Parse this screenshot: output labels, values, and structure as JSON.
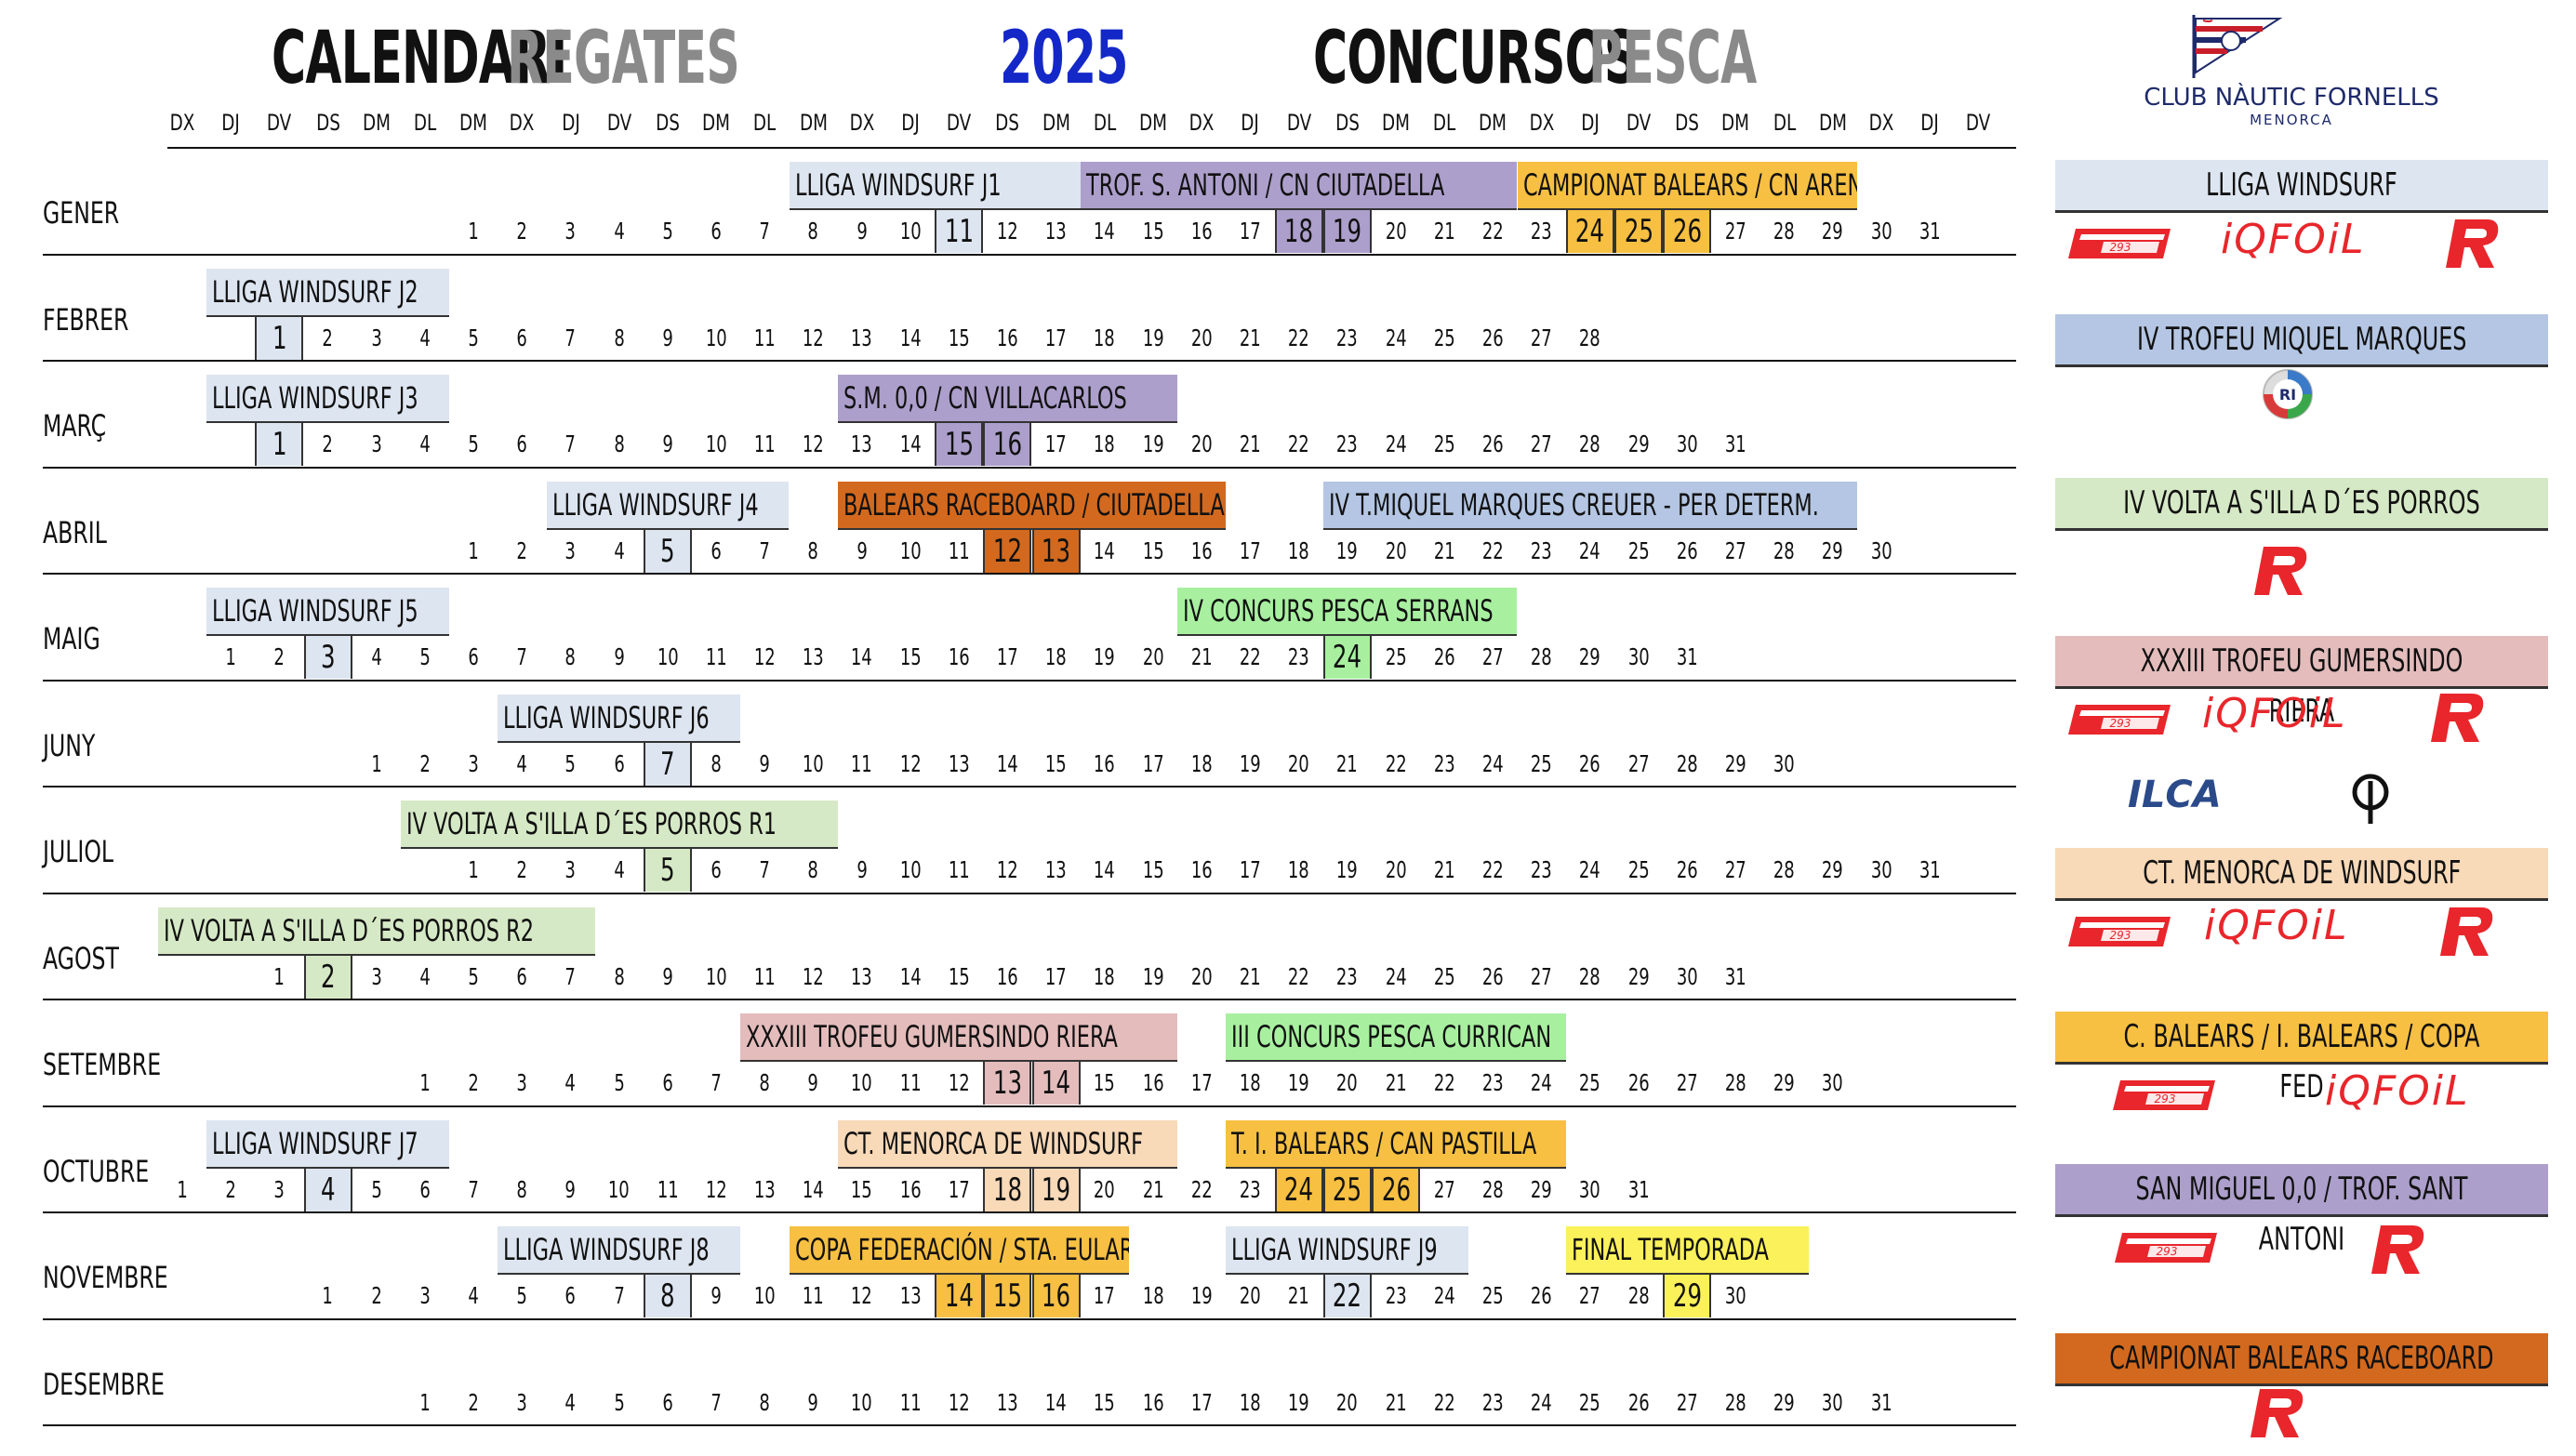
{
  "title": {
    "calendari": "CALENDARI",
    "regates": "REGATES",
    "year": "2025",
    "concursos": "CONCURSOS",
    "pesca": "PESCA"
  },
  "club": {
    "name": "CLUB NÀUTIC FORNELLS",
    "sub": "MENORCA"
  },
  "colors": {
    "windsurf": "#dde5f0",
    "blue_legend": "#b4c6e3",
    "purple": "#ac9fcb",
    "orange_dark": "#d2691e",
    "green_pale": "#d6e9c6",
    "pink": "#e4bcbc",
    "peach": "#f8d9b8",
    "gold": "#f7c042",
    "yellow": "#fbf15a",
    "green_bright": "#a8f0a0",
    "red_logo": "#e8262b"
  },
  "day_headers": [
    "DX",
    "DJ",
    "DV",
    "DS",
    "DM",
    "DL",
    "DM",
    "DX",
    "DJ",
    "DV",
    "DS",
    "DM",
    "DL",
    "DM",
    "DX",
    "DJ",
    "DV",
    "DS",
    "DM",
    "DL",
    "DM",
    "DX",
    "DJ",
    "DV",
    "DS",
    "DM",
    "DL",
    "DM",
    "DX",
    "DJ",
    "DV",
    "DS",
    "DM",
    "DL",
    "DM",
    "DX",
    "DJ",
    "DV"
  ],
  "months": [
    {
      "name": "GENER",
      "start": 7,
      "days": 31,
      "hl": [
        [
          11,
          "#dde5f0"
        ],
        [
          18,
          "#ac9fcb"
        ],
        [
          19,
          "#ac9fcb"
        ],
        [
          24,
          "#f7c042"
        ],
        [
          25,
          "#f7c042"
        ],
        [
          26,
          "#f7c042"
        ]
      ],
      "bars": [
        {
          "label": "LLIGA WINDSURF J1",
          "c0": 14,
          "c1": 19,
          "color": "#dde5f0"
        },
        {
          "label": "TROF. S. ANTONI / CN CIUTADELLA",
          "c0": 20,
          "c1": 28,
          "color": "#ac9fcb"
        },
        {
          "label": "CAMPIONAT BALEARS / CN ARENAL",
          "c0": 29,
          "c1": 35,
          "color": "#f7c042"
        }
      ]
    },
    {
      "name": "FEBRER",
      "start": 3,
      "days": 28,
      "hl": [
        [
          1,
          "#dde5f0"
        ]
      ],
      "bars": [
        {
          "label": "LLIGA WINDSURF  J2",
          "c0": 2,
          "c1": 6,
          "color": "#dde5f0"
        }
      ]
    },
    {
      "name": "MARÇ",
      "start": 3,
      "days": 31,
      "hl": [
        [
          1,
          "#dde5f0"
        ],
        [
          15,
          "#ac9fcb"
        ],
        [
          16,
          "#ac9fcb"
        ]
      ],
      "bars": [
        {
          "label": "LLIGA WINDSURF  J3",
          "c0": 2,
          "c1": 6,
          "color": "#dde5f0"
        },
        {
          "label": "S.M. 0,0 / CN VILLACARLOS",
          "c0": 15,
          "c1": 21,
          "color": "#ac9fcb"
        }
      ]
    },
    {
      "name": "ABRIL",
      "start": 7,
      "days": 30,
      "hl": [
        [
          5,
          "#dde5f0"
        ],
        [
          12,
          "#d2691e"
        ],
        [
          13,
          "#d2691e"
        ]
      ],
      "bars": [
        {
          "label": "LLIGA WINDSURF  J4",
          "c0": 9,
          "c1": 13,
          "color": "#dde5f0"
        },
        {
          "label": "BALEARS RACEBOARD / CIUTADELLA",
          "c0": 15,
          "c1": 22,
          "color": "#d2691e"
        },
        {
          "label": "IV  T.MIQUEL MARQUES CREUER - PER DETERM.",
          "c0": 25,
          "c1": 35,
          "color": "#b4c6e3"
        }
      ]
    },
    {
      "name": "MAIG",
      "start": 2,
      "days": 31,
      "hl": [
        [
          3,
          "#dde5f0"
        ],
        [
          24,
          "#a8f0a0"
        ]
      ],
      "bars": [
        {
          "label": "LLIGA WINDSURF  J5",
          "c0": 2,
          "c1": 6,
          "color": "#dde5f0"
        },
        {
          "label": "IV CONCURS PESCA SERRANS",
          "c0": 22,
          "c1": 28,
          "color": "#a8f0a0"
        }
      ]
    },
    {
      "name": "JUNY",
      "start": 5,
      "days": 30,
      "hl": [
        [
          7,
          "#dde5f0"
        ]
      ],
      "bars": [
        {
          "label": "LLIGA WINDSURF  J6",
          "c0": 8,
          "c1": 12,
          "color": "#dde5f0"
        }
      ]
    },
    {
      "name": "JULIOL",
      "start": 7,
      "days": 31,
      "hl": [
        [
          5,
          "#d6e9c6"
        ]
      ],
      "bars": [
        {
          "label": "IV VOLTA A S'ILLA D´ES PORROS  R1",
          "c0": 6,
          "c1": 14,
          "color": "#d6e9c6"
        }
      ]
    },
    {
      "name": "AGOST",
      "start": 3,
      "days": 31,
      "hl": [
        [
          2,
          "#d6e9c6"
        ]
      ],
      "bars": [
        {
          "label": "IV VOLTA A S'ILLA D´ES PORROS  R2",
          "c0": 1,
          "c1": 9,
          "color": "#d6e9c6"
        }
      ]
    },
    {
      "name": "SETEMBRE",
      "start": 6,
      "days": 30,
      "hl": [
        [
          13,
          "#e4bcbc"
        ],
        [
          14,
          "#e4bcbc"
        ]
      ],
      "bars": [
        {
          "label": "XXXIII TROFEU GUMERSINDO RIERA",
          "c0": 13,
          "c1": 21,
          "color": "#e4bcbc"
        },
        {
          "label": "III CONCURS  PESCA CURRICAN",
          "c0": 23,
          "c1": 29,
          "color": "#a8f0a0"
        }
      ]
    },
    {
      "name": "OCTUBRE",
      "start": 1,
      "days": 31,
      "hl": [
        [
          4,
          "#dde5f0"
        ],
        [
          18,
          "#f8d9b8"
        ],
        [
          19,
          "#f8d9b8"
        ],
        [
          24,
          "#f7c042"
        ],
        [
          25,
          "#f7c042"
        ],
        [
          26,
          "#f7c042"
        ]
      ],
      "bars": [
        {
          "label": "LLIGA WINDSURF  J7",
          "c0": 2,
          "c1": 6,
          "color": "#dde5f0"
        },
        {
          "label": "CT. MENORCA DE WINDSURF",
          "c0": 15,
          "c1": 21,
          "color": "#f8d9b8"
        },
        {
          "label": "T. I. BALEARS / CAN PASTILLA",
          "c0": 23,
          "c1": 29,
          "color": "#f7c042"
        }
      ]
    },
    {
      "name": "NOVEMBRE",
      "start": 4,
      "days": 30,
      "hl": [
        [
          8,
          "#dde5f0"
        ],
        [
          14,
          "#f7c042"
        ],
        [
          15,
          "#f7c042"
        ],
        [
          16,
          "#f7c042"
        ],
        [
          22,
          "#dde5f0"
        ],
        [
          29,
          "#fbf15a"
        ]
      ],
      "bars": [
        {
          "label": "LLIGA WINDSURF  J8",
          "c0": 8,
          "c1": 12,
          "color": "#dde5f0"
        },
        {
          "label": "COPA FEDERACIÓN / STA. EULARIA",
          "c0": 14,
          "c1": 20,
          "color": "#f7c042"
        },
        {
          "label": "LLIGA WINDSURF  J9",
          "c0": 23,
          "c1": 27,
          "color": "#dde5f0"
        },
        {
          "label": "FINAL TEMPORADA",
          "c0": 30,
          "c1": 34,
          "color": "#fbf15a"
        }
      ]
    },
    {
      "name": "DESEMBRE",
      "start": 6,
      "days": 31,
      "hl": [],
      "bars": []
    }
  ],
  "legend": [
    {
      "label": "LLIGA WINDSURF",
      "color": "#dde5f0",
      "logos": [
        "T293",
        "IQFOIL",
        "R"
      ]
    },
    {
      "label": "IV TROFEU MIQUEL MARQUES",
      "color": "#b4c6e3",
      "logos": [
        "RI"
      ]
    },
    {
      "label": "IV VOLTA A S'ILLA D´ES PORROS",
      "color": "#d6e9c6",
      "logos": [
        "R"
      ]
    },
    {
      "label": "XXXIII TROFEU GUMERSINDO RIERA",
      "color": "#e4bcbc",
      "logos": [
        "T293",
        "IQFOIL",
        "R",
        "ILCA",
        "OPTI"
      ]
    },
    {
      "label": "CT. MENORCA DE WINDSURF",
      "color": "#f8d9b8",
      "logos": [
        "T293",
        "IQFOIL",
        "R"
      ]
    },
    {
      "label": "C. BALEARS / I. BALEARS / COPA FED",
      "color": "#f7c042",
      "logos": [
        "T293",
        "IQFOIL"
      ]
    },
    {
      "label": "SAN MIGUEL 0,0 / TROF. SANT ANTONI",
      "color": "#ac9fcb",
      "logos": [
        "T293",
        "R"
      ]
    },
    {
      "label": "CAMPIONAT BALEARS RACEBOARD",
      "color": "#d2691e",
      "logos": [
        "R"
      ]
    }
  ],
  "logo_text": {
    "iqfoil": "iQFOiL",
    "ilca": "ILCA",
    "ri": "R I"
  }
}
